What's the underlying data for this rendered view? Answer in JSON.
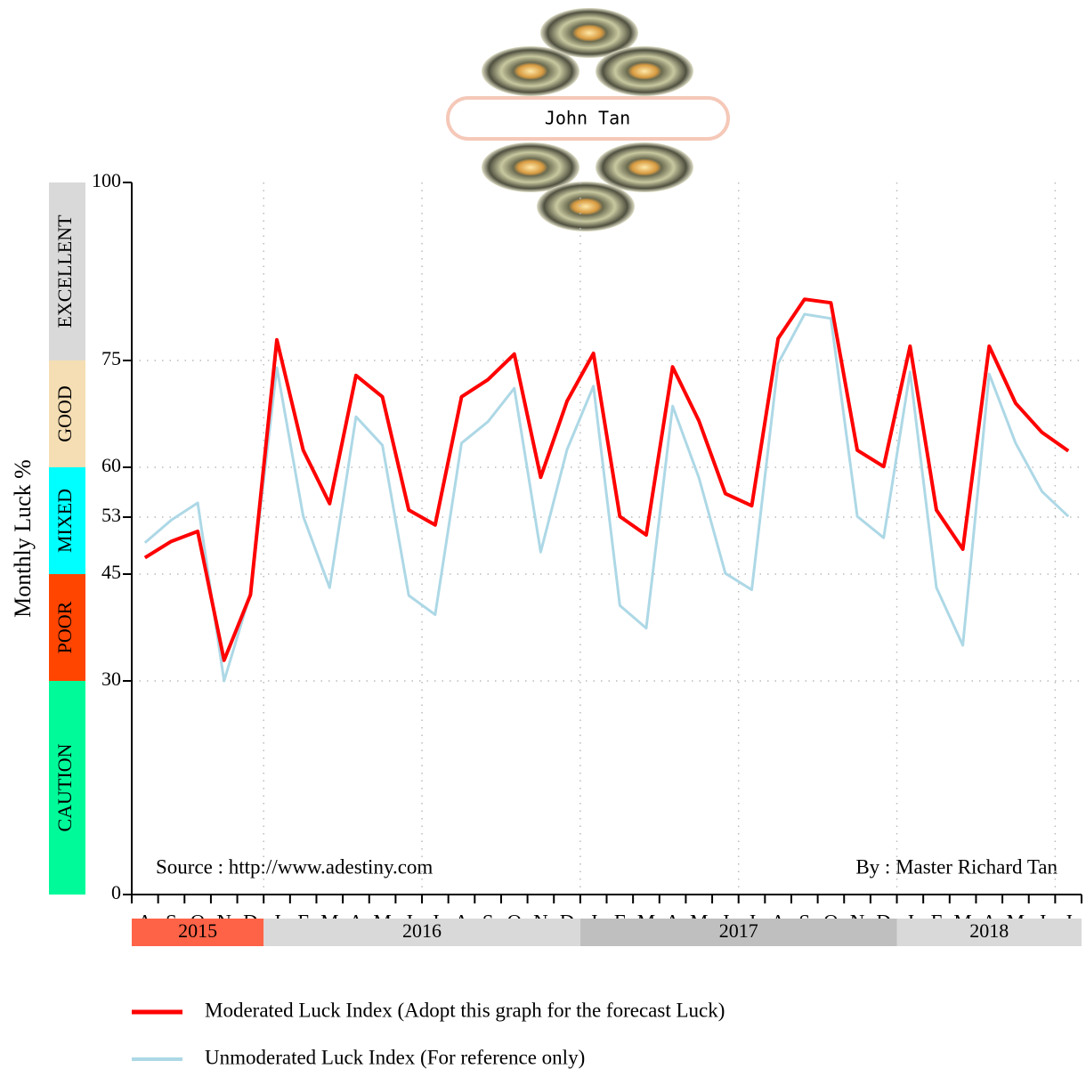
{
  "chart_data": {
    "type": "line",
    "name": "John Tan",
    "y_label": "Monthly Luck %",
    "source": "Source : http://www.adestiny.com",
    "author": "By : Master Richard Tan",
    "categories": [
      "A",
      "S",
      "O",
      "N",
      "D",
      "J",
      "F",
      "M",
      "A",
      "M",
      "J",
      "J",
      "A",
      "S",
      "O",
      "N",
      "D",
      "J",
      "F",
      "M",
      "A",
      "M",
      "J",
      "J",
      "A",
      "S",
      "O",
      "N",
      "D",
      "J",
      "F",
      "M",
      "A",
      "M",
      "J",
      "J"
    ],
    "years": [
      "2015",
      "2016",
      "2017",
      "2018"
    ],
    "year_colors": [
      "#ff6347",
      "#d9d9d9",
      "#bfbfbf",
      "#d9d9d9"
    ],
    "series": [
      {
        "name": "Moderated Luck Index (Adopt this graph for the forecast Luck)",
        "color": "#ff0000",
        "width": 4,
        "values": [
          47.3,
          49.6,
          51,
          32.9,
          42.1,
          77.9,
          62.4,
          54.9,
          72.9,
          69.9,
          54,
          51.9,
          69.9,
          72.3,
          75.9,
          58.6,
          69.3,
          76,
          53.1,
          50.5,
          74.1,
          66.5,
          56.3,
          54.6,
          78.1,
          83.6,
          83.1,
          62.4,
          60.1,
          77,
          54,
          48.5,
          77,
          69,
          64.9,
          62.3
        ]
      },
      {
        "name": "Unmoderated Luck Index (For reference only)",
        "color": "#add8e6",
        "width": 3,
        "values": [
          49.4,
          52.6,
          55,
          30,
          42.3,
          74,
          53.1,
          43.1,
          67.1,
          63.1,
          42,
          39.3,
          63.4,
          66.4,
          71.1,
          48.1,
          62.5,
          71.4,
          40.6,
          37.4,
          68.6,
          58.5,
          45.1,
          42.8,
          74.6,
          81.5,
          80.9,
          53.1,
          50.1,
          73.4,
          43.1,
          35,
          73.1,
          63.4,
          56.6,
          53.1
        ]
      }
    ],
    "zones": [
      {
        "label": "EXCELLENT",
        "from": 75,
        "to": 100,
        "color": "#d9d9d9"
      },
      {
        "label": "GOOD",
        "from": 60,
        "to": 75,
        "color": "#f5deb3"
      },
      {
        "label": "MIXED",
        "from": 45,
        "to": 60,
        "color": "#00ffff"
      },
      {
        "label": "POOR",
        "from": 30,
        "to": 45,
        "color": "#ff4500"
      },
      {
        "label": "CAUTION",
        "from": 0,
        "to": 30,
        "color": "#00fa9a"
      }
    ],
    "ylim": [
      0,
      100
    ],
    "yticks": [
      0,
      30,
      45,
      53,
      60,
      75,
      100
    ],
    "grid": true
  }
}
